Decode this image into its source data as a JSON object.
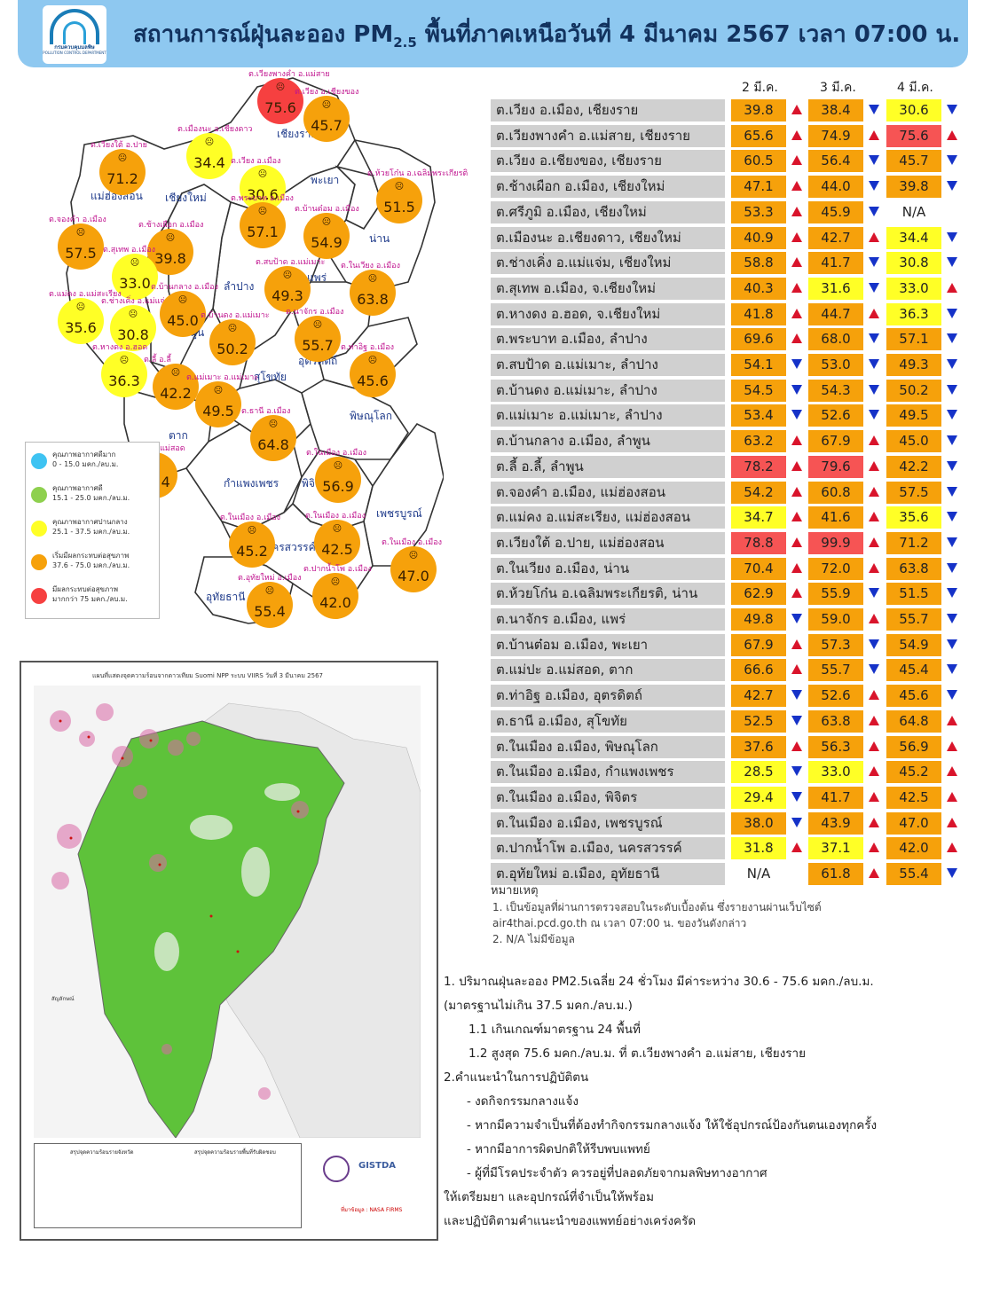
{
  "header": {
    "org_name": "กรมควบคุมมลพิษ",
    "org_name_en": "POLLUTION CONTROL DEPARTMENT",
    "title_prefix": "สถานการณ์ฝุ่นละออง PM",
    "title_sub": "2.5",
    "title_suffix": " พื้นที่ภาคเหนือวันที่ 4 มีนาคม 2567 เวลา 07:00 น."
  },
  "map": {
    "provinces": [
      "เชียงราย",
      "แม่ฮ่องสอน",
      "เชียงใหม่",
      "พะเยา",
      "น่าน",
      "ลำปาง",
      "แพร่",
      "ลำพูน",
      "อุตรดิตถ์",
      "สุโขทัย",
      "ตาก",
      "พิษณุโลก",
      "กำแพงเพชร",
      "พิจิตร",
      "เพชรบูรณ์",
      "นครสวรรค์",
      "อุทัยธานี"
    ],
    "stations": [
      {
        "label": "ต.เวียงพางคำ อ.แม่สาย",
        "value": "75.6",
        "level": "red"
      },
      {
        "label": "ต.เวียง อ.เชียงของ",
        "value": "45.7",
        "level": "orange"
      },
      {
        "label": "ต.เมืองนะ อ.เชียงดาว",
        "value": "34.4",
        "level": "yellow"
      },
      {
        "label": "ต.เวียง อ.เมือง",
        "value": "30.6",
        "level": "yellow"
      },
      {
        "label": "ต.เวียงใต้ อ.ปาย",
        "value": "71.2",
        "level": "orange"
      },
      {
        "label": "ต.ห้วยโก๋น อ.เฉลิมพระเกียรติ",
        "value": "51.5",
        "level": "orange"
      },
      {
        "label": "ต.พระบาท อ.เมือง",
        "value": "57.1",
        "level": "orange"
      },
      {
        "label": "ต.บ้านต๋อม อ.เมือง",
        "value": "54.9",
        "level": "orange"
      },
      {
        "label": "ต.จองคำ อ.เมือง",
        "value": "57.5",
        "level": "orange"
      },
      {
        "label": "ต.ช้างเผือก อ.เมือง",
        "value": "39.8",
        "level": "orange"
      },
      {
        "label": "ต.สุเทพ อ.เมือง",
        "value": "33.0",
        "level": "yellow"
      },
      {
        "label": "ต.สบป้าด อ.แม่เมาะ",
        "value": "49.3",
        "level": "orange"
      },
      {
        "label": "ต.ในเวียง อ.เมือง",
        "value": "63.8",
        "level": "orange"
      },
      {
        "label": "ต.แม่คง อ.แม่สะเรียง",
        "value": "35.6",
        "level": "yellow"
      },
      {
        "label": "ต.ช่างเคิ่ง อ.แม่แจ่ม",
        "value": "30.8",
        "level": "yellow"
      },
      {
        "label": "ต.บ้านกลาง อ.เมือง",
        "value": "45.0",
        "level": "orange"
      },
      {
        "label": "ต.บ้านดง อ.แม่เมาะ",
        "value": "50.2",
        "level": "orange"
      },
      {
        "label": "ต.นาจักร อ.เมือง",
        "value": "55.7",
        "level": "orange"
      },
      {
        "label": "ต.หางดง อ.ฮอด",
        "value": "36.3",
        "level": "yellow"
      },
      {
        "label": "ต.ลี้ อ.ลี้",
        "value": "42.2",
        "level": "orange"
      },
      {
        "label": "ต.แม่เมาะ อ.แม่เมาะ",
        "value": "49.5",
        "level": "orange"
      },
      {
        "label": "ต.ท่าอิฐ อ.เมือง",
        "value": "45.6",
        "level": "orange"
      },
      {
        "label": "ต.ธานี อ.เมือง",
        "value": "64.8",
        "level": "orange"
      },
      {
        "label": "ต.แม่ปะ อ.แม่สอด",
        "value": "45.4",
        "level": "orange"
      },
      {
        "label": "ต.ในเมือง อ.เมือง",
        "value": "56.9",
        "level": "orange"
      },
      {
        "label": "ต.ในเมือง อ.เมือง",
        "value": "45.2",
        "level": "orange"
      },
      {
        "label": "ต.ในเมือง อ.เมือง",
        "value": "42.5",
        "level": "orange"
      },
      {
        "label": "ต.ในเมือง อ.เมือง",
        "value": "47.0",
        "level": "orange"
      },
      {
        "label": "ต.อุทัยใหม่ อ.เมือง",
        "value": "55.4",
        "level": "orange"
      },
      {
        "label": "ต.ปากน้ำโพ อ.เมือง",
        "value": "42.0",
        "level": "orange"
      }
    ],
    "legend": [
      {
        "title": "คุณภาพอากาศดีมาก",
        "range": "0 - 15.0 มคก./ลบ.ม.",
        "color": "#3ec3f2"
      },
      {
        "title": "คุณภาพอากาศดี",
        "range": "15.1 - 25.0 มคก./ลบ.ม.",
        "color": "#8ed04e"
      },
      {
        "title": "คุณภาพอากาศปานกลาง",
        "range": "25.1 - 37.5 มคก./ลบ.ม.",
        "color": "#ffff26"
      },
      {
        "title": "เริ่มมีผลกระทบต่อสุขภาพ",
        "range": "37.6 - 75.0 มคก./ลบ.ม.",
        "color": "#f6a10b"
      },
      {
        "title": "มีผลกระทบต่อสุขภาพ",
        "range": "มากกว่า 75 มคก./ลบ.ม.",
        "color": "#f64040"
      }
    ]
  },
  "satellite": {
    "title": "แผนที่แสดงจุดความร้อนจากดาวเทียม Suomi NPP ระบบ VIIRS วันที่ 3 มีนาคม 2567",
    "legend_title": "สัญลักษณ์",
    "summary_left_title": "สรุปจุดความร้อนรายจังหวัด",
    "summary_right_title": "สรุปจุดความร้อนรายพื้นที่รับผิดชอบ",
    "source": "ที่มาข้อมูล : NASA FIRMS",
    "credit": "GISTDA"
  },
  "table": {
    "dates": [
      "2 มี.ค.",
      "3 มี.ค.",
      "4 มี.ค."
    ],
    "rows": [
      {
        "name": "ต.เวียง อ.เมือง, เชียงราย",
        "d1": "39.8",
        "c1": "org",
        "a1": "up",
        "d2": "38.4",
        "c2": "org",
        "a2": "dn",
        "d3": "30.6",
        "c3": "yel",
        "a3": "dn"
      },
      {
        "name": "ต.เวียงพางคำ อ.แม่สาย, เชียงราย",
        "d1": "65.6",
        "c1": "org",
        "a1": "up",
        "d2": "74.9",
        "c2": "org",
        "a2": "up",
        "d3": "75.6",
        "c3": "red",
        "a3": "up"
      },
      {
        "name": "ต.เวียง อ.เชียงของ, เชียงราย",
        "d1": "60.5",
        "c1": "org",
        "a1": "up",
        "d2": "56.4",
        "c2": "org",
        "a2": "dn",
        "d3": "45.7",
        "c3": "org",
        "a3": "dn"
      },
      {
        "name": "ต.ช้างเผือก อ.เมือง, เชียงใหม่",
        "d1": "47.1",
        "c1": "org",
        "a1": "up",
        "d2": "44.0",
        "c2": "org",
        "a2": "dn",
        "d3": "39.8",
        "c3": "org",
        "a3": "dn"
      },
      {
        "name": "ต.ศรีภูมิ อ.เมือง, เชียงใหม่",
        "d1": "53.3",
        "c1": "org",
        "a1": "up",
        "d2": "45.9",
        "c2": "org",
        "a2": "dn",
        "d3": "N/A",
        "c3": "none",
        "a3": ""
      },
      {
        "name": "ต.เมืองนะ อ.เชียงดาว, เชียงใหม่",
        "d1": "40.9",
        "c1": "org",
        "a1": "up",
        "d2": "42.7",
        "c2": "org",
        "a2": "up",
        "d3": "34.4",
        "c3": "yel",
        "a3": "dn"
      },
      {
        "name": "ต.ช่างเคิ่ง อ.แม่แจ่ม, เชียงใหม่",
        "d1": "58.8",
        "c1": "org",
        "a1": "up",
        "d2": "41.7",
        "c2": "org",
        "a2": "dn",
        "d3": "30.8",
        "c3": "yel",
        "a3": "dn"
      },
      {
        "name": "ต.สุเทพ  อ.เมือง, จ.เชียงใหม่",
        "d1": "40.3",
        "c1": "org",
        "a1": "up",
        "d2": "31.6",
        "c2": "yel",
        "a2": "dn",
        "d3": "33.0",
        "c3": "yel",
        "a3": "up"
      },
      {
        "name": "ต.หางดง อ.ฮอด, จ.เชียงใหม่",
        "d1": "41.8",
        "c1": "org",
        "a1": "up",
        "d2": "44.7",
        "c2": "org",
        "a2": "up",
        "d3": "36.3",
        "c3": "yel",
        "a3": "dn"
      },
      {
        "name": "ต.พระบาท อ.เมือง, ลำปาง",
        "d1": "69.6",
        "c1": "org",
        "a1": "up",
        "d2": "68.0",
        "c2": "org",
        "a2": "dn",
        "d3": "57.1",
        "c3": "org",
        "a3": "dn"
      },
      {
        "name": "ต.สบป้าด อ.แม่เมาะ, ลำปาง",
        "d1": "54.1",
        "c1": "org",
        "a1": "dn",
        "d2": "53.0",
        "c2": "org",
        "a2": "dn",
        "d3": "49.3",
        "c3": "org",
        "a3": "dn"
      },
      {
        "name": "ต.บ้านดง อ.แม่เมาะ, ลำปาง",
        "d1": "54.5",
        "c1": "org",
        "a1": "dn",
        "d2": "54.3",
        "c2": "org",
        "a2": "dn",
        "d3": "50.2",
        "c3": "org",
        "a3": "dn"
      },
      {
        "name": "ต.แม่เมาะ อ.แม่เมาะ, ลำปาง",
        "d1": "53.4",
        "c1": "org",
        "a1": "dn",
        "d2": "52.6",
        "c2": "org",
        "a2": "dn",
        "d3": "49.5",
        "c3": "org",
        "a3": "dn"
      },
      {
        "name": "ต.บ้านกลาง อ.เมือง, ลำพูน",
        "d1": "63.2",
        "c1": "org",
        "a1": "up",
        "d2": "67.9",
        "c2": "org",
        "a2": "up",
        "d3": "45.0",
        "c3": "org",
        "a3": "dn"
      },
      {
        "name": "ต.ลี้ อ.ลี้, ลำพูน",
        "d1": "78.2",
        "c1": "red",
        "a1": "up",
        "d2": "79.6",
        "c2": "red",
        "a2": "up",
        "d3": "42.2",
        "c3": "org",
        "a3": "dn"
      },
      {
        "name": "ต.จองคำ อ.เมือง, แม่ฮ่องสอน",
        "d1": "54.2",
        "c1": "org",
        "a1": "up",
        "d2": "60.8",
        "c2": "org",
        "a2": "up",
        "d3": "57.5",
        "c3": "org",
        "a3": "dn"
      },
      {
        "name": "ต.แม่คง อ.แม่สะเรียง, แม่ฮ่องสอน",
        "d1": "34.7",
        "c1": "yel",
        "a1": "up",
        "d2": "41.6",
        "c2": "org",
        "a2": "up",
        "d3": "35.6",
        "c3": "yel",
        "a3": "dn"
      },
      {
        "name": "ต.เวียงใต้ อ.ปาย, แม่ฮ่องสอน",
        "d1": "78.8",
        "c1": "red",
        "a1": "up",
        "d2": "99.9",
        "c2": "red",
        "a2": "up",
        "d3": "71.2",
        "c3": "org",
        "a3": "dn"
      },
      {
        "name": "ต.ในเวียง อ.เมือง, น่าน",
        "d1": "70.4",
        "c1": "org",
        "a1": "up",
        "d2": "72.0",
        "c2": "org",
        "a2": "up",
        "d3": "63.8",
        "c3": "org",
        "a3": "dn"
      },
      {
        "name": "ต.ห้วยโก๋น อ.เฉลิมพระเกียรติ, น่าน",
        "d1": "62.9",
        "c1": "org",
        "a1": "up",
        "d2": "55.9",
        "c2": "org",
        "a2": "dn",
        "d3": "51.5",
        "c3": "org",
        "a3": "dn"
      },
      {
        "name": "ต.นาจักร อ.เมือง, แพร่",
        "d1": "49.8",
        "c1": "org",
        "a1": "dn",
        "d2": "59.0",
        "c2": "org",
        "a2": "up",
        "d3": "55.7",
        "c3": "org",
        "a3": "dn"
      },
      {
        "name": "ต.บ้านต๋อม อ.เมือง, พะเยา",
        "d1": "67.9",
        "c1": "org",
        "a1": "up",
        "d2": "57.3",
        "c2": "org",
        "a2": "dn",
        "d3": "54.9",
        "c3": "org",
        "a3": "dn"
      },
      {
        "name": "ต.แม่ปะ อ.แม่สอด, ตาก",
        "d1": "66.6",
        "c1": "org",
        "a1": "up",
        "d2": "55.7",
        "c2": "org",
        "a2": "dn",
        "d3": "45.4",
        "c3": "org",
        "a3": "dn"
      },
      {
        "name": "ต.ท่าอิฐ อ.เมือง, อุตรดิตถ์",
        "d1": "42.7",
        "c1": "org",
        "a1": "dn",
        "d2": "52.6",
        "c2": "org",
        "a2": "up",
        "d3": "45.6",
        "c3": "org",
        "a3": "dn"
      },
      {
        "name": "ต.ธานี อ.เมือง, สุโขทัย",
        "d1": "52.5",
        "c1": "org",
        "a1": "dn",
        "d2": "63.8",
        "c2": "org",
        "a2": "up",
        "d3": "64.8",
        "c3": "org",
        "a3": "up"
      },
      {
        "name": "ต.ในเมือง อ.เมือง, พิษณุโลก",
        "d1": "37.6",
        "c1": "org",
        "a1": "up",
        "d2": "56.3",
        "c2": "org",
        "a2": "up",
        "d3": "56.9",
        "c3": "org",
        "a3": "up"
      },
      {
        "name": "ต.ในเมือง อ.เมือง, กำแพงเพชร",
        "d1": "28.5",
        "c1": "yel",
        "a1": "dn",
        "d2": "33.0",
        "c2": "yel",
        "a2": "up",
        "d3": "45.2",
        "c3": "org",
        "a3": "up"
      },
      {
        "name": "ต.ในเมือง อ.เมือง, พิจิตร",
        "d1": "29.4",
        "c1": "yel",
        "a1": "dn",
        "d2": "41.7",
        "c2": "org",
        "a2": "up",
        "d3": "42.5",
        "c3": "org",
        "a3": "up"
      },
      {
        "name": "ต.ในเมือง อ.เมือง, เพชรบูรณ์",
        "d1": "38.0",
        "c1": "org",
        "a1": "dn",
        "d2": "43.9",
        "c2": "org",
        "a2": "up",
        "d3": "47.0",
        "c3": "org",
        "a3": "up"
      },
      {
        "name": "ต.ปากน้ำโพ อ.เมือง, นครสวรรค์",
        "d1": "31.8",
        "c1": "yel",
        "a1": "up",
        "d2": "37.1",
        "c2": "yel",
        "a2": "up",
        "d3": "42.0",
        "c3": "org",
        "a3": "up"
      },
      {
        "name": "ต.อุทัยใหม่ อ.เมือง, อุทัยธานี",
        "d1": "N/A",
        "c1": "none",
        "a1": "",
        "d2": "61.8",
        "c2": "org",
        "a2": "up",
        "d3": "55.4",
        "c3": "org",
        "a3": "dn"
      }
    ]
  },
  "notes": {
    "heading": "หมายเหตุ",
    "line1": "1. เป็นข้อมูลที่ผ่านการตรวจสอบในระดับเบื้องต้น  ซึ่งรายงานผ่านเว็บไซต์",
    "line2": "air4thai.pcd.go.th  ณ  เวลา 07:00  น.  ของวันดังกล่าว",
    "line3": "2.  N/A  ไม่มีข้อมูล"
  },
  "summary": {
    "l1": "1. ปริมาณฝุ่นละออง PM2.5เฉลี่ย 24 ชั่วโมง มีค่าระหว่าง 30.6 - 75.6 มคก./ลบ.ม.",
    "l2": "(มาตรฐานไม่เกิน 37.5 มคก./ลบ.ม.)",
    "l3": "1.1 เกินเกณฑ์มาตรฐาน 24  พื้นที่",
    "l4": "1.2 สูงสุด 75.6 มคก./ลบ.ม. ที่ ต.เวียงพางคำ อ.แม่สาย, เชียงราย",
    "l5": "2.คำแนะนำในการปฏิบัติตน",
    "l6": "-  งดกิจกรรมกลางแจ้ง",
    "l7": "-  หากมีความจำเป็นที่ต้องทำกิจกรรมกลางแจ้ง ให้ใช้อุปกรณ์ป้องกันตนเองทุกครั้ง",
    "l8": "-  หากมีอาการผิดปกติให้รีบพบแพทย์",
    "l9": "-  ผู้ที่มีโรคประจำตัว ควรอยู่ที่ปลอดภัยจากมลพิษทางอากาศ",
    "l10": "ให้เตรียมยา  และอุปกรณ์ที่จำเป็นให้พร้อม",
    "l11": "และปฏิบัติตามคำแนะนำของแพทย์อย่างเคร่งครัด"
  }
}
